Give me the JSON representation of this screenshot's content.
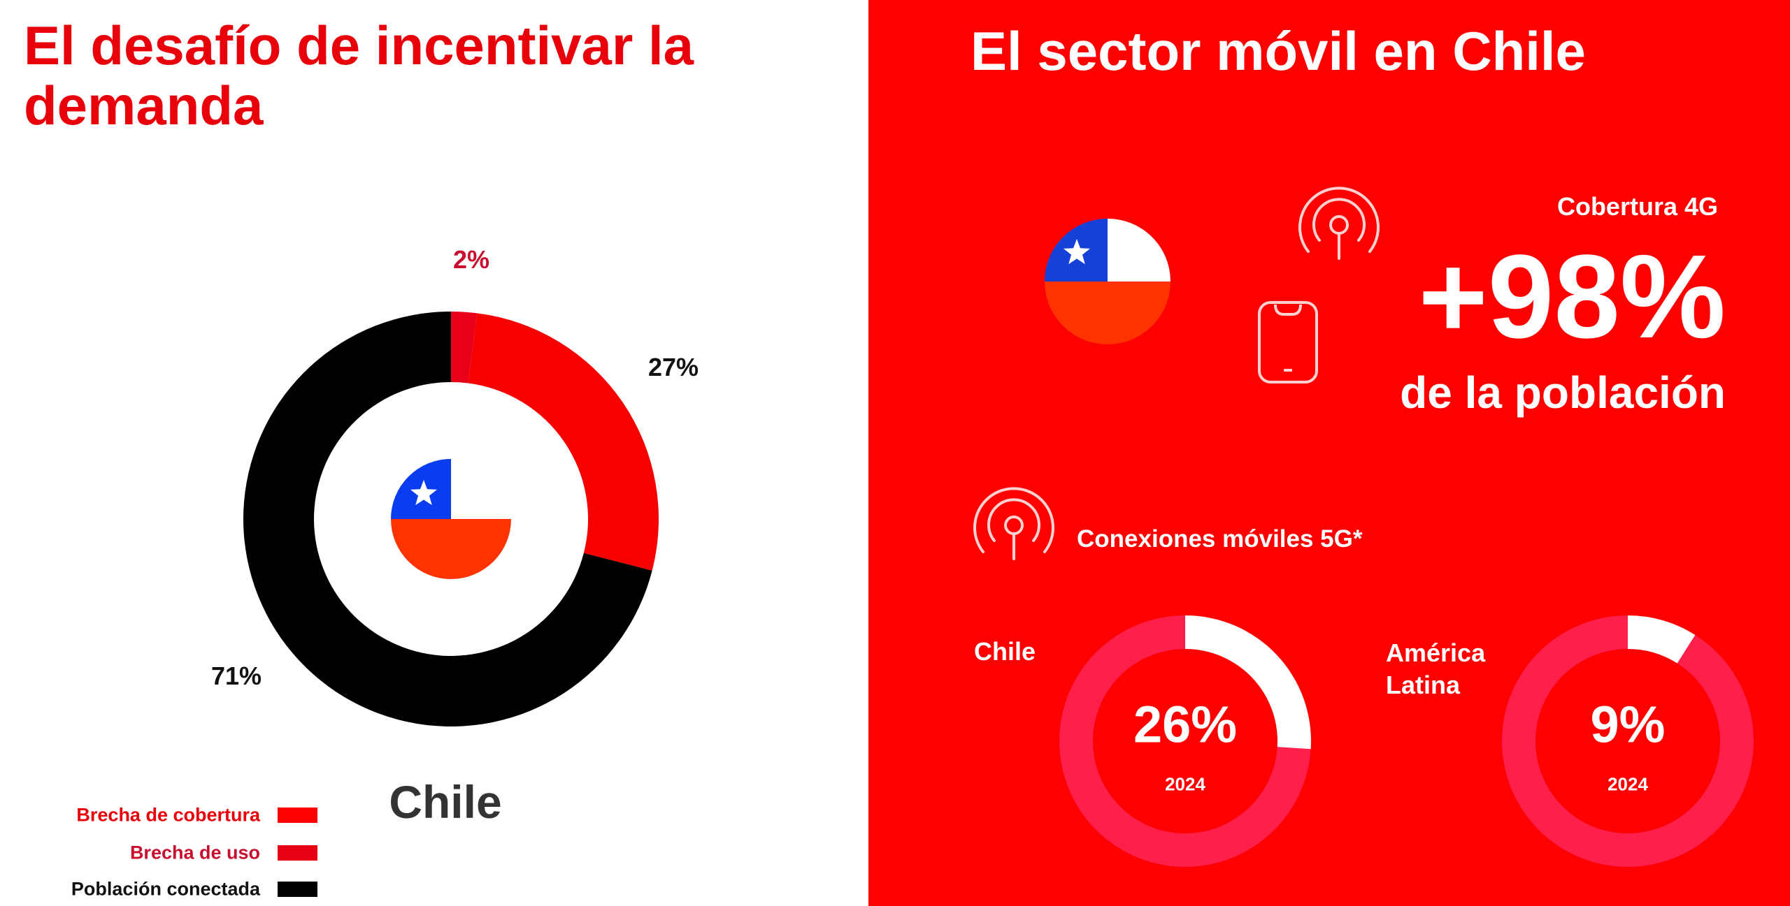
{
  "left": {
    "title": "El desafío de incentivar la demanda",
    "country": "Chile",
    "chart_data": {
      "type": "pie",
      "subtype": "donut",
      "categories": [
        "Brecha de cobertura",
        "Brecha de uso",
        "Población conectada"
      ],
      "values": [
        2,
        27,
        71
      ],
      "labels": [
        "2%",
        "27%",
        "71%"
      ],
      "colors": [
        "#e8001a",
        "#f60000",
        "#000000"
      ],
      "legend": "bottom-left"
    },
    "legend": [
      {
        "label": "Brecha de cobertura",
        "color": "#ff0000",
        "text_color": "#e8000b"
      },
      {
        "label": "Brecha de uso",
        "color": "#e60012",
        "text_color": "#c8102e"
      },
      {
        "label": "Población conectada",
        "color": "#000000",
        "text_color": "#111111"
      }
    ]
  },
  "right": {
    "title": "El sector móvil en Chile",
    "coverage_label": "Cobertura 4G",
    "coverage_value": "+98%",
    "coverage_sub": "de la población",
    "connections_label": "Conexiones móviles 5G*",
    "icons": [
      "chile-flag",
      "antenna-icon",
      "phone-icon",
      "antenna-icon"
    ],
    "chart_data": [
      {
        "type": "pie",
        "subtype": "donut",
        "name": "Chile",
        "value": 26,
        "label": "26%",
        "year": "2024",
        "colors": [
          "#ffffff",
          "#ff1f4b"
        ]
      },
      {
        "type": "pie",
        "subtype": "donut",
        "name": "América Latina",
        "value": 9,
        "label": "9%",
        "year": "2024",
        "colors": [
          "#ffffff",
          "#ff1f4b"
        ]
      }
    ]
  }
}
